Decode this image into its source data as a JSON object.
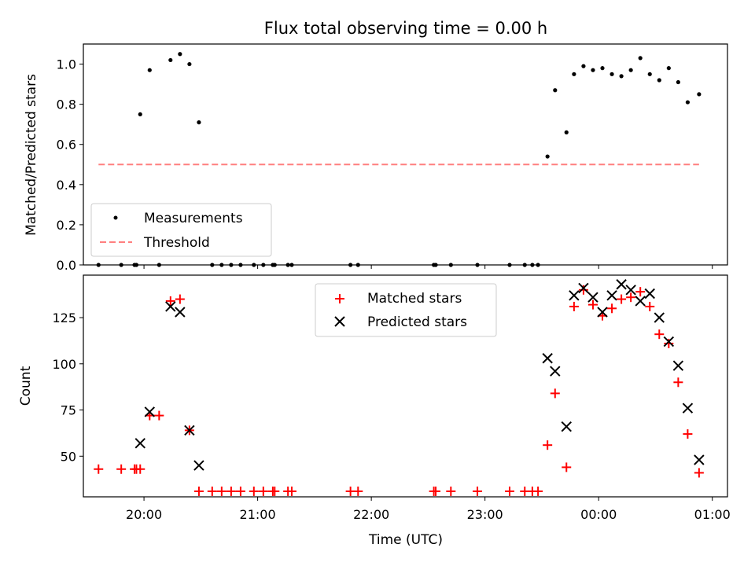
{
  "chart_data": [
    {
      "type": "scatter",
      "title": "Flux total observing time = 0.00 h",
      "xlabel": "",
      "ylabel": "Matched/Predicted stars",
      "xlim": [
        "19:28",
        "01:08"
      ],
      "ylim": [
        0,
        1.1
      ],
      "yticks": [
        "0.0",
        "0.2",
        "0.4",
        "0.6",
        "0.8",
        "1.0"
      ],
      "legend_position": "lower-left",
      "series": [
        {
          "name": "Measurements",
          "marker": "dot",
          "color": "#000000",
          "points": [
            [
              "19:36",
              0.0
            ],
            [
              "19:48",
              0.0
            ],
            [
              "19:55",
              0.0
            ],
            [
              "19:56",
              0.0
            ],
            [
              "19:58",
              0.75
            ],
            [
              "20:03",
              0.97
            ],
            [
              "20:08",
              0.0
            ],
            [
              "20:14",
              1.02
            ],
            [
              "20:19",
              1.05
            ],
            [
              "20:24",
              1.0
            ],
            [
              "20:29",
              0.71
            ],
            [
              "20:36",
              0.0
            ],
            [
              "20:41",
              0.0
            ],
            [
              "20:46",
              0.0
            ],
            [
              "20:51",
              0.0
            ],
            [
              "20:58",
              0.0
            ],
            [
              "21:03",
              0.0
            ],
            [
              "21:08",
              0.0
            ],
            [
              "21:09",
              0.0
            ],
            [
              "21:16",
              0.0
            ],
            [
              "21:18",
              0.0
            ],
            [
              "21:49",
              0.0
            ],
            [
              "21:53",
              0.0
            ],
            [
              "22:33",
              0.0
            ],
            [
              "22:34",
              0.0
            ],
            [
              "22:42",
              0.0
            ],
            [
              "22:56",
              0.0
            ],
            [
              "23:13",
              0.0
            ],
            [
              "23:21",
              0.0
            ],
            [
              "23:25",
              0.0
            ],
            [
              "23:28",
              0.0
            ],
            [
              "23:33",
              0.54
            ],
            [
              "23:37",
              0.87
            ],
            [
              "23:43",
              0.66
            ],
            [
              "23:47",
              0.95
            ],
            [
              "23:52",
              0.99
            ],
            [
              "23:57",
              0.97
            ],
            [
              "00:02",
              0.98
            ],
            [
              "00:07",
              0.95
            ],
            [
              "00:12",
              0.94
            ],
            [
              "00:17",
              0.97
            ],
            [
              "00:22",
              1.03
            ],
            [
              "00:27",
              0.95
            ],
            [
              "00:32",
              0.92
            ],
            [
              "00:37",
              0.98
            ],
            [
              "00:42",
              0.91
            ],
            [
              "00:47",
              0.81
            ],
            [
              "00:53",
              0.85
            ]
          ]
        },
        {
          "name": "Threshold",
          "marker": "dashed-line",
          "color": "#ff7f7f",
          "points": [
            [
              "19:36",
              0.5
            ],
            [
              "00:53",
              0.5
            ]
          ]
        }
      ]
    },
    {
      "type": "scatter",
      "title": "",
      "xlabel": "Time (UTC)",
      "ylabel": "Count",
      "xlim": [
        "19:28",
        "01:08"
      ],
      "ylim": [
        28,
        148
      ],
      "xticks": [
        "20:00",
        "21:00",
        "22:00",
        "23:00",
        "00:00",
        "01:00"
      ],
      "yticks": [
        "50",
        "75",
        "100",
        "125"
      ],
      "legend_position": "upper-center",
      "series": [
        {
          "name": "Matched stars",
          "marker": "plus",
          "color": "#ff0000",
          "points": [
            [
              "19:36",
              43
            ],
            [
              "19:48",
              43
            ],
            [
              "19:55",
              43
            ],
            [
              "19:56",
              43
            ],
            [
              "19:58",
              43
            ],
            [
              "20:03",
              72
            ],
            [
              "20:08",
              72
            ],
            [
              "20:14",
              134
            ],
            [
              "20:19",
              135
            ],
            [
              "20:24",
              64
            ],
            [
              "20:29",
              31
            ],
            [
              "20:36",
              31
            ],
            [
              "20:41",
              31
            ],
            [
              "20:46",
              31
            ],
            [
              "20:51",
              31
            ],
            [
              "20:58",
              31
            ],
            [
              "21:03",
              31
            ],
            [
              "21:08",
              31
            ],
            [
              "21:09",
              31
            ],
            [
              "21:16",
              31
            ],
            [
              "21:18",
              31
            ],
            [
              "21:49",
              31
            ],
            [
              "21:53",
              31
            ],
            [
              "22:33",
              31
            ],
            [
              "22:34",
              31
            ],
            [
              "22:42",
              31
            ],
            [
              "22:56",
              31
            ],
            [
              "23:13",
              31
            ],
            [
              "23:21",
              31
            ],
            [
              "23:25",
              31
            ],
            [
              "23:28",
              31
            ],
            [
              "23:33",
              56
            ],
            [
              "23:37",
              84
            ],
            [
              "23:43",
              44
            ],
            [
              "23:47",
              131
            ],
            [
              "23:52",
              140
            ],
            [
              "23:57",
              132
            ],
            [
              "00:02",
              126
            ],
            [
              "00:07",
              130
            ],
            [
              "00:12",
              135
            ],
            [
              "00:17",
              136
            ],
            [
              "00:22",
              139
            ],
            [
              "00:27",
              131
            ],
            [
              "00:32",
              116
            ],
            [
              "00:37",
              111
            ],
            [
              "00:42",
              90
            ],
            [
              "00:47",
              62
            ],
            [
              "00:53",
              41
            ]
          ]
        },
        {
          "name": "Predicted stars",
          "marker": "x",
          "color": "#000000",
          "points": [
            [
              "19:58",
              57
            ],
            [
              "20:03",
              74
            ],
            [
              "20:14",
              131
            ],
            [
              "20:19",
              128
            ],
            [
              "20:24",
              64
            ],
            [
              "20:29",
              45
            ],
            [
              "23:33",
              103
            ],
            [
              "23:37",
              96
            ],
            [
              "23:43",
              66
            ],
            [
              "23:47",
              137
            ],
            [
              "23:52",
              141
            ],
            [
              "23:57",
              136
            ],
            [
              "00:02",
              128
            ],
            [
              "00:07",
              137
            ],
            [
              "00:12",
              143
            ],
            [
              "00:17",
              140
            ],
            [
              "00:22",
              134
            ],
            [
              "00:27",
              138
            ],
            [
              "00:32",
              125
            ],
            [
              "00:37",
              112
            ],
            [
              "00:42",
              99
            ],
            [
              "00:47",
              76
            ],
            [
              "00:53",
              48
            ]
          ]
        }
      ]
    }
  ]
}
